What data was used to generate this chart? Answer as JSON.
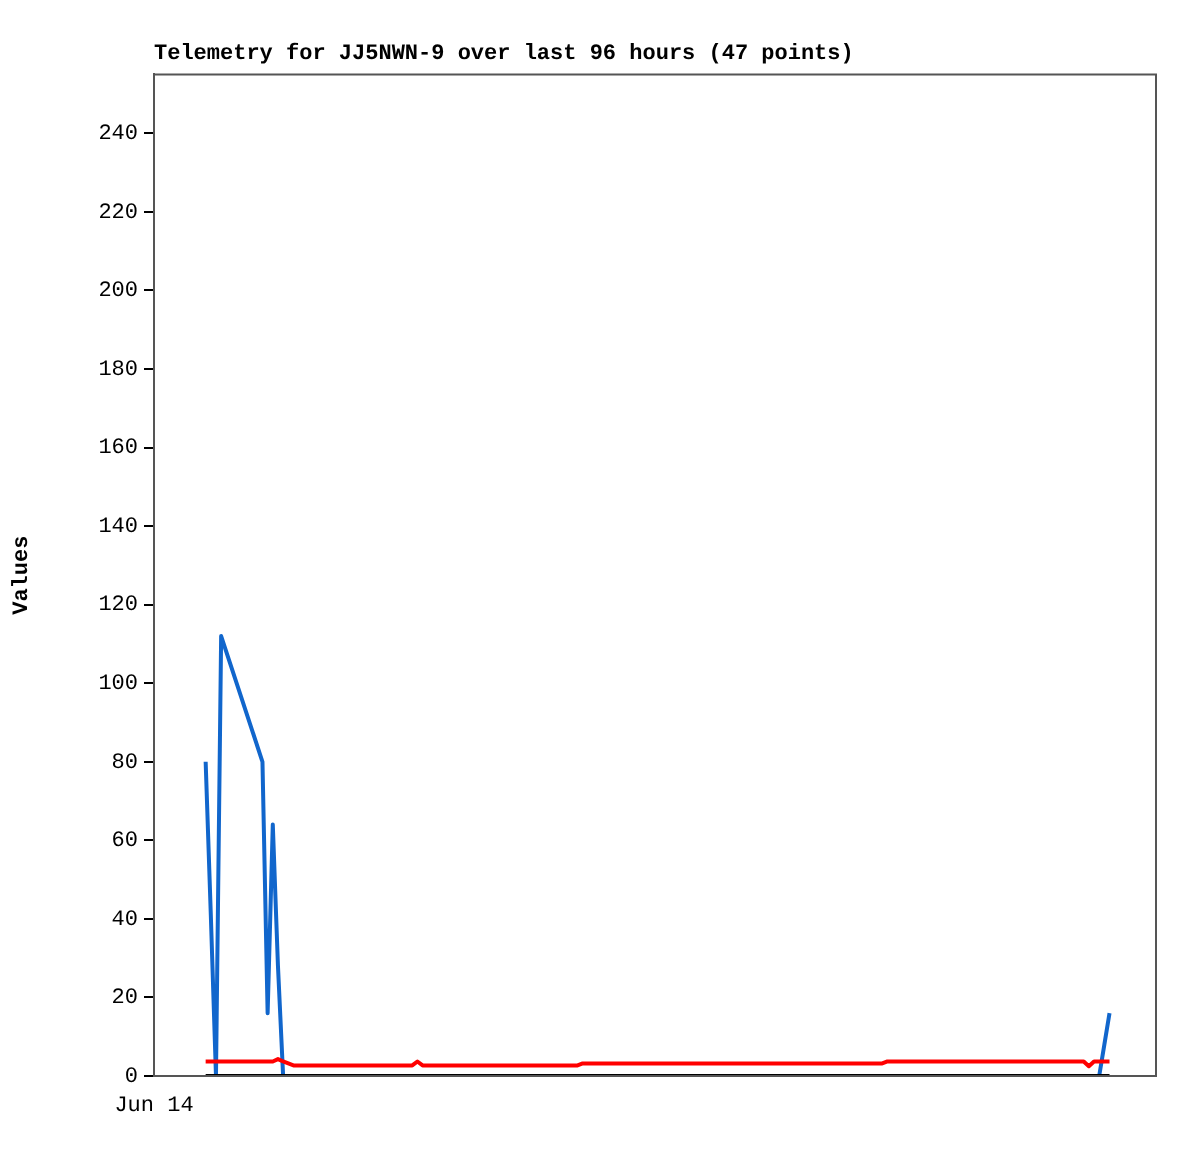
{
  "chart_data": {
    "type": "line",
    "title": "Telemetry for JJ5NWN-9 over last 96 hours (47 points)",
    "ylabel": "Values",
    "annotations": [
      "Jun 14"
    ],
    "ylim": [
      0,
      255
    ],
    "yticks": [
      0,
      20,
      40,
      60,
      80,
      100,
      120,
      140,
      160,
      180,
      200,
      220,
      240
    ],
    "grid": false,
    "legend": false,
    "marker": "none",
    "line_style": "solid",
    "categories": [
      null,
      null,
      null,
      null,
      null,
      null,
      null,
      null,
      null,
      null,
      null,
      null,
      null,
      null,
      null,
      null,
      null,
      null,
      null,
      null,
      null,
      null,
      null,
      null,
      null,
      null,
      null,
      null,
      null,
      null,
      null,
      null,
      null,
      null,
      null,
      null,
      null,
      null,
      null,
      null,
      null,
      null,
      null,
      null,
      null,
      null,
      null,
      null,
      null,
      null,
      null,
      null,
      null,
      null,
      null,
      null,
      null,
      null,
      null,
      null,
      null,
      null,
      null,
      null,
      null,
      null,
      null,
      null,
      null,
      null,
      null,
      null,
      null,
      null,
      null,
      null,
      null,
      null,
      null,
      null,
      null,
      null,
      null,
      null,
      null,
      null,
      null,
      null,
      null,
      null,
      null,
      null,
      null,
      null,
      null,
      null,
      null,
      null,
      null,
      null,
      null,
      null,
      null,
      null,
      null,
      null,
      null,
      null,
      null,
      null,
      null,
      null,
      null,
      null,
      null,
      null,
      null,
      null,
      null,
      null,
      null,
      null,
      null,
      null,
      null,
      null,
      null,
      null,
      null,
      null,
      null,
      null,
      null,
      null,
      null,
      null,
      null,
      null,
      null,
      null,
      null,
      null,
      null,
      null,
      null,
      null,
      null,
      null,
      null,
      null,
      null,
      null,
      null,
      null,
      null,
      null,
      null,
      null,
      null,
      null,
      null,
      null,
      null,
      null,
      null,
      null,
      null,
      null,
      null,
      null,
      null,
      null,
      null,
      null,
      null,
      null
    ],
    "series": [
      {
        "color": "#000000",
        "values": [
          0,
          null,
          null,
          null,
          null,
          null,
          null,
          null,
          null,
          null,
          null,
          null,
          null,
          null,
          null,
          null,
          null,
          null,
          null,
          null,
          null,
          null,
          null,
          null,
          null,
          null,
          null,
          null,
          null,
          null,
          null,
          null,
          null,
          null,
          null,
          null,
          null,
          null,
          null,
          null,
          null,
          null,
          null,
          null,
          null,
          null,
          null,
          null,
          null,
          null,
          null,
          null,
          null,
          null,
          null,
          null,
          null,
          null,
          null,
          null,
          null,
          null,
          null,
          null,
          null,
          null,
          null,
          null,
          null,
          null,
          null,
          null,
          null,
          null,
          null,
          null,
          null,
          null,
          null,
          null,
          null,
          null,
          null,
          null,
          null,
          null,
          null,
          null,
          null,
          null,
          null,
          null,
          null,
          null,
          null,
          null,
          null,
          null,
          null,
          null,
          null,
          null,
          null,
          null,
          null,
          null,
          null,
          null,
          null,
          null,
          null,
          null,
          null,
          null,
          null,
          null,
          null,
          null,
          null,
          null,
          null,
          null,
          null,
          null,
          null,
          null,
          null,
          null,
          null,
          null,
          null,
          null,
          null,
          null,
          null,
          null,
          null,
          null,
          null,
          null,
          null,
          null,
          null,
          null,
          null,
          null,
          null,
          null,
          null,
          null,
          null,
          null,
          null,
          null,
          null,
          null,
          null,
          null,
          null,
          null,
          null,
          null,
          null,
          null,
          null,
          null,
          null,
          null,
          null,
          null,
          null,
          null,
          null,
          null,
          null,
          0
        ]
      },
      {
        "color": "#ff0000",
        "values": [
          3.7,
          null,
          null,
          null,
          null,
          null,
          null,
          null,
          null,
          null,
          null,
          null,
          null,
          3.7,
          4.3,
          3.7,
          null,
          2.7,
          null,
          null,
          null,
          null,
          null,
          null,
          null,
          null,
          null,
          null,
          null,
          null,
          null,
          null,
          null,
          null,
          null,
          null,
          null,
          null,
          null,
          null,
          2.7,
          3.7,
          2.7,
          null,
          null,
          null,
          null,
          null,
          null,
          null,
          null,
          null,
          null,
          null,
          null,
          null,
          null,
          null,
          null,
          null,
          null,
          null,
          null,
          null,
          null,
          null,
          null,
          null,
          null,
          null,
          null,
          null,
          2.7,
          3.2,
          null,
          null,
          null,
          null,
          null,
          null,
          null,
          null,
          null,
          null,
          null,
          null,
          null,
          null,
          null,
          null,
          null,
          null,
          null,
          null,
          null,
          null,
          null,
          null,
          null,
          null,
          null,
          null,
          null,
          null,
          null,
          null,
          null,
          null,
          null,
          null,
          null,
          null,
          null,
          null,
          null,
          null,
          null,
          null,
          null,
          null,
          null,
          null,
          null,
          null,
          null,
          null,
          null,
          null,
          null,
          null,
          null,
          3.2,
          3.7,
          null,
          null,
          null,
          null,
          null,
          null,
          null,
          null,
          null,
          null,
          null,
          null,
          null,
          null,
          null,
          null,
          null,
          null,
          null,
          null,
          null,
          null,
          null,
          null,
          null,
          null,
          null,
          null,
          null,
          null,
          null,
          null,
          null,
          null,
          null,
          null,
          null,
          3.7,
          2.5,
          3.7,
          null,
          null,
          3.7
        ]
      },
      {
        "color": "#1166cc",
        "values": [
          80,
          41,
          0,
          112,
          null,
          null,
          null,
          null,
          null,
          null,
          null,
          80,
          16,
          64,
          28,
          0,
          null,
          null,
          null,
          null,
          null,
          null,
          null,
          null,
          null,
          null,
          null,
          null,
          null,
          null,
          null,
          null,
          null,
          null,
          null,
          null,
          null,
          null,
          null,
          null,
          null,
          null,
          null,
          null,
          null,
          null,
          null,
          null,
          null,
          null,
          null,
          null,
          null,
          null,
          null,
          null,
          null,
          null,
          null,
          null,
          null,
          null,
          null,
          null,
          null,
          null,
          null,
          null,
          null,
          null,
          null,
          null,
          null,
          null,
          null,
          null,
          null,
          null,
          null,
          null,
          null,
          null,
          null,
          null,
          null,
          null,
          null,
          null,
          null,
          null,
          null,
          null,
          null,
          null,
          null,
          null,
          null,
          null,
          null,
          null,
          null,
          null,
          null,
          null,
          null,
          null,
          null,
          null,
          null,
          null,
          null,
          null,
          null,
          null,
          null,
          null,
          null,
          null,
          null,
          null,
          null,
          null,
          null,
          null,
          null,
          null,
          null,
          null,
          null,
          null,
          null,
          null,
          null,
          null,
          null,
          null,
          null,
          null,
          null,
          null,
          null,
          null,
          null,
          null,
          null,
          null,
          null,
          null,
          null,
          null,
          null,
          null,
          null,
          null,
          null,
          null,
          null,
          null,
          null,
          null,
          null,
          null,
          null,
          null,
          null,
          null,
          null,
          null,
          null,
          null,
          null,
          null,
          null,
          0,
          8,
          16
        ]
      }
    ]
  }
}
